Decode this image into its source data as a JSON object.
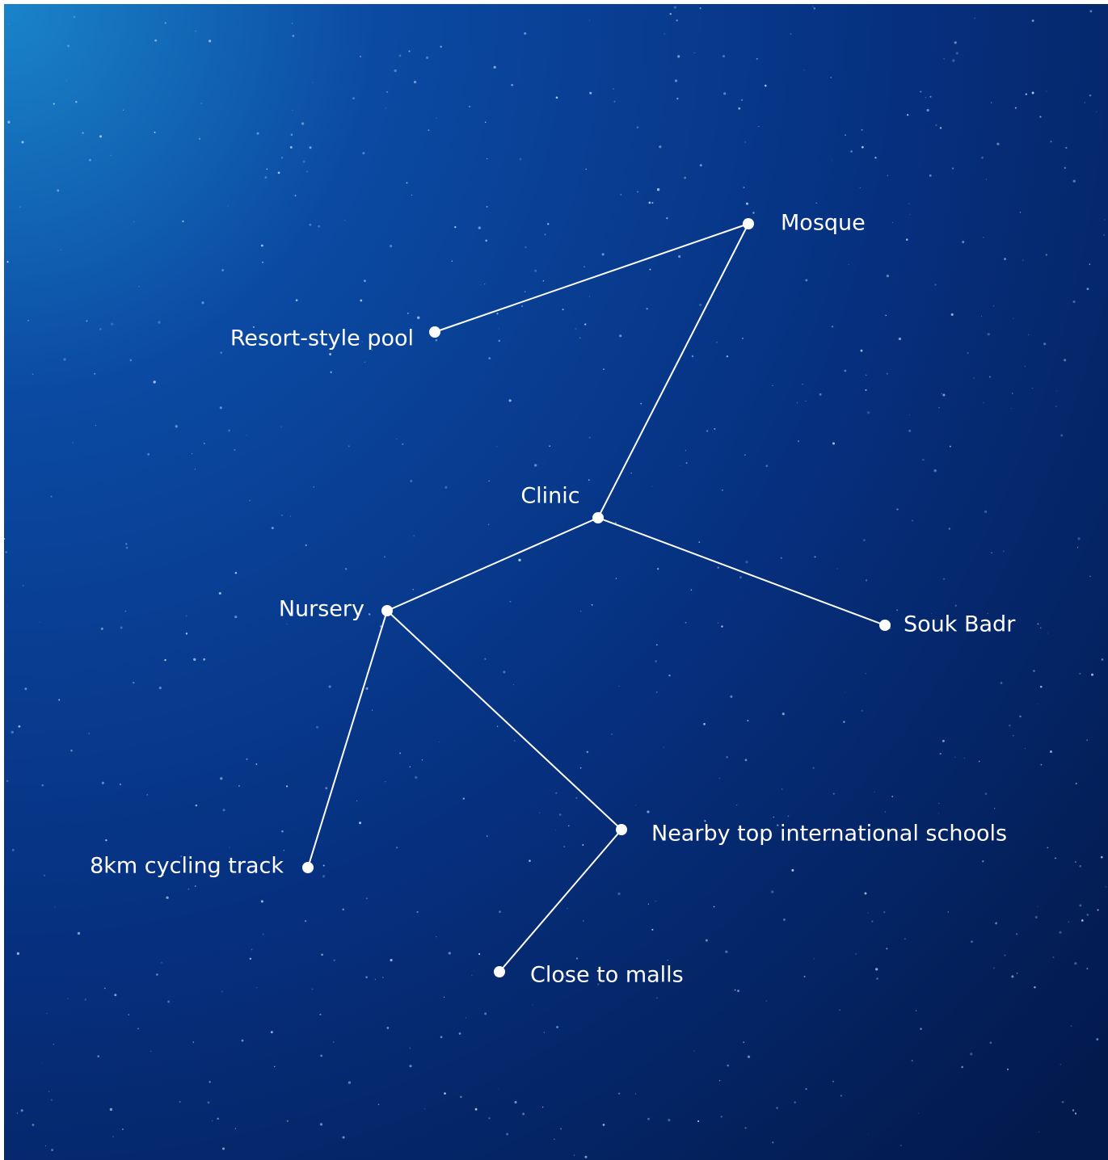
{
  "nodes": [
    {
      "label": "Mosque"
    },
    {
      "label": "Resort-style pool"
    },
    {
      "label": "Clinic"
    },
    {
      "label": "Nursery"
    },
    {
      "label": "Souk Badr"
    },
    {
      "label": "Nearby top international schools"
    },
    {
      "label": "8km cycling track"
    },
    {
      "label": "Close to malls"
    }
  ]
}
